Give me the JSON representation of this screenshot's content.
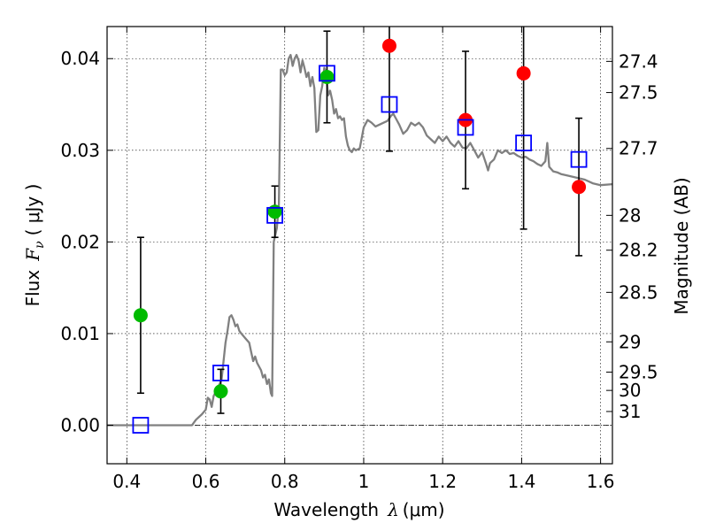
{
  "chart_data": {
    "type": "scatter",
    "xlabel": "Wavelength",
    "xlabel_symbol": "λ",
    "xlabel_unit": "(μm)",
    "ylabel": "Flux",
    "ylabel_symbol": "F",
    "ylabel_sub": "ν",
    "ylabel_unit": "( μJy )",
    "y2label": "Magnitude (AB)",
    "xlim": [
      0.35,
      1.63
    ],
    "ylim": [
      -0.0042,
      0.0435
    ],
    "grid": true,
    "x_ticks": [
      {
        "value": 0.4,
        "label": "0.4"
      },
      {
        "value": 0.6,
        "label": "0.6"
      },
      {
        "value": 0.8,
        "label": "0.8"
      },
      {
        "value": 1.0,
        "label": "1"
      },
      {
        "value": 1.2,
        "label": "1.2"
      },
      {
        "value": 1.4,
        "label": "1.4"
      },
      {
        "value": 1.6,
        "label": "1.6"
      }
    ],
    "y_ticks": [
      {
        "value": 0.0,
        "label": "0.00"
      },
      {
        "value": 0.01,
        "label": "0.01"
      },
      {
        "value": 0.02,
        "label": "0.02"
      },
      {
        "value": 0.03,
        "label": "0.03"
      },
      {
        "value": 0.04,
        "label": "0.04"
      }
    ],
    "y2_ticks": [
      {
        "label": "27.4",
        "flux": 0.0397
      },
      {
        "label": "27.5",
        "flux": 0.0363
      },
      {
        "label": "27.7",
        "flux": 0.0302
      },
      {
        "label": "28",
        "flux": 0.0229
      },
      {
        "label": "28.2",
        "flux": 0.0191
      },
      {
        "label": "28.5",
        "flux": 0.0145
      },
      {
        "label": "29",
        "flux": 0.0091
      },
      {
        "label": "29.5",
        "flux": 0.0058
      },
      {
        "label": "30",
        "flux": 0.0038
      },
      {
        "label": "31",
        "flux": 0.0015
      }
    ],
    "colors": {
      "model": "#808080",
      "green": "#00bb00",
      "red": "#ff0000",
      "square": "#0000ff",
      "errorbar": "#000000",
      "zero_line": "#000000"
    },
    "series": [
      {
        "marker": "circle",
        "color_key": "green",
        "points": [
          {
            "x": 0.435,
            "y": 0.012,
            "err": 0.0085
          },
          {
            "x": 0.638,
            "y": 0.0037,
            "err": 0.0024
          },
          {
            "x": 0.775,
            "y": 0.0233,
            "err": 0.0028
          },
          {
            "x": 0.907,
            "y": 0.038,
            "err": 0.005
          }
        ]
      },
      {
        "marker": "circle",
        "color_key": "red",
        "points": [
          {
            "x": 1.065,
            "y": 0.0414,
            "err": 0.0115
          },
          {
            "x": 1.258,
            "y": 0.0333,
            "err": 0.0075
          },
          {
            "x": 1.405,
            "y": 0.0384,
            "err": 0.017
          },
          {
            "x": 1.545,
            "y": 0.026,
            "err": 0.0075
          }
        ]
      },
      {
        "marker": "square",
        "color_key": "square",
        "points": [
          {
            "x": 0.435,
            "y": 0.0
          },
          {
            "x": 0.638,
            "y": 0.0057
          },
          {
            "x": 0.775,
            "y": 0.0229
          },
          {
            "x": 0.907,
            "y": 0.0384
          },
          {
            "x": 1.065,
            "y": 0.035
          },
          {
            "x": 1.258,
            "y": 0.0325
          },
          {
            "x": 1.405,
            "y": 0.0308
          },
          {
            "x": 1.545,
            "y": 0.029
          }
        ]
      }
    ],
    "model_curve": [
      [
        0.35,
        0.0
      ],
      [
        0.565,
        0.0
      ],
      [
        0.575,
        0.0006
      ],
      [
        0.59,
        0.0012
      ],
      [
        0.6,
        0.0017
      ],
      [
        0.605,
        0.003
      ],
      [
        0.61,
        0.0028
      ],
      [
        0.615,
        0.002
      ],
      [
        0.62,
        0.0032
      ],
      [
        0.63,
        0.004
      ],
      [
        0.64,
        0.005
      ],
      [
        0.645,
        0.007
      ],
      [
        0.65,
        0.009
      ],
      [
        0.655,
        0.0103
      ],
      [
        0.66,
        0.0118
      ],
      [
        0.665,
        0.012
      ],
      [
        0.67,
        0.0115
      ],
      [
        0.675,
        0.0108
      ],
      [
        0.68,
        0.011
      ],
      [
        0.685,
        0.0103
      ],
      [
        0.69,
        0.01
      ],
      [
        0.7,
        0.0095
      ],
      [
        0.71,
        0.009
      ],
      [
        0.715,
        0.008
      ],
      [
        0.72,
        0.007
      ],
      [
        0.725,
        0.0075
      ],
      [
        0.73,
        0.0068
      ],
      [
        0.74,
        0.006
      ],
      [
        0.745,
        0.0052
      ],
      [
        0.75,
        0.0055
      ],
      [
        0.755,
        0.0045
      ],
      [
        0.76,
        0.005
      ],
      [
        0.765,
        0.0035
      ],
      [
        0.768,
        0.0032
      ],
      [
        0.772,
        0.02
      ],
      [
        0.78,
        0.0215
      ],
      [
        0.785,
        0.024
      ],
      [
        0.79,
        0.0388
      ],
      [
        0.795,
        0.0388
      ],
      [
        0.8,
        0.0382
      ],
      [
        0.805,
        0.0385
      ],
      [
        0.81,
        0.04
      ],
      [
        0.815,
        0.0404
      ],
      [
        0.82,
        0.0392
      ],
      [
        0.825,
        0.04
      ],
      [
        0.83,
        0.0404
      ],
      [
        0.835,
        0.0398
      ],
      [
        0.84,
        0.0385
      ],
      [
        0.845,
        0.0398
      ],
      [
        0.85,
        0.039
      ],
      [
        0.855,
        0.038
      ],
      [
        0.86,
        0.0385
      ],
      [
        0.865,
        0.037
      ],
      [
        0.87,
        0.038
      ],
      [
        0.875,
        0.0368
      ],
      [
        0.88,
        0.032
      ],
      [
        0.885,
        0.0322
      ],
      [
        0.89,
        0.036
      ],
      [
        0.895,
        0.037
      ],
      [
        0.9,
        0.039
      ],
      [
        0.905,
        0.0385
      ],
      [
        0.91,
        0.036
      ],
      [
        0.915,
        0.0365
      ],
      [
        0.92,
        0.0355
      ],
      [
        0.925,
        0.034
      ],
      [
        0.93,
        0.0345
      ],
      [
        0.935,
        0.0335
      ],
      [
        0.94,
        0.0337
      ],
      [
        0.945,
        0.0333
      ],
      [
        0.95,
        0.0335
      ],
      [
        0.955,
        0.0315
      ],
      [
        0.96,
        0.0305
      ],
      [
        0.965,
        0.03
      ],
      [
        0.97,
        0.0298
      ],
      [
        0.975,
        0.0302
      ],
      [
        0.98,
        0.03
      ],
      [
        0.99,
        0.0302
      ],
      [
        1.0,
        0.0325
      ],
      [
        1.01,
        0.0333
      ],
      [
        1.02,
        0.033
      ],
      [
        1.03,
        0.0326
      ],
      [
        1.04,
        0.0328
      ],
      [
        1.05,
        0.033
      ],
      [
        1.06,
        0.0332
      ],
      [
        1.07,
        0.0338
      ],
      [
        1.075,
        0.034
      ],
      [
        1.08,
        0.0336
      ],
      [
        1.09,
        0.0328
      ],
      [
        1.1,
        0.0318
      ],
      [
        1.11,
        0.0322
      ],
      [
        1.12,
        0.033
      ],
      [
        1.13,
        0.0327
      ],
      [
        1.14,
        0.033
      ],
      [
        1.15,
        0.0325
      ],
      [
        1.16,
        0.0316
      ],
      [
        1.17,
        0.0312
      ],
      [
        1.18,
        0.0308
      ],
      [
        1.19,
        0.0315
      ],
      [
        1.2,
        0.031
      ],
      [
        1.21,
        0.0315
      ],
      [
        1.22,
        0.0308
      ],
      [
        1.23,
        0.0304
      ],
      [
        1.24,
        0.031
      ],
      [
        1.25,
        0.0303
      ],
      [
        1.26,
        0.0302
      ],
      [
        1.27,
        0.0308
      ],
      [
        1.28,
        0.03
      ],
      [
        1.29,
        0.0292
      ],
      [
        1.3,
        0.0298
      ],
      [
        1.31,
        0.0285
      ],
      [
        1.315,
        0.0278
      ],
      [
        1.32,
        0.0286
      ],
      [
        1.33,
        0.029
      ],
      [
        1.34,
        0.03
      ],
      [
        1.35,
        0.0297
      ],
      [
        1.36,
        0.03
      ],
      [
        1.37,
        0.0296
      ],
      [
        1.38,
        0.0297
      ],
      [
        1.39,
        0.0294
      ],
      [
        1.4,
        0.0292
      ],
      [
        1.41,
        0.0293
      ],
      [
        1.42,
        0.029
      ],
      [
        1.43,
        0.0288
      ],
      [
        1.44,
        0.0285
      ],
      [
        1.45,
        0.0283
      ],
      [
        1.46,
        0.0288
      ],
      [
        1.465,
        0.0308
      ],
      [
        1.47,
        0.0282
      ],
      [
        1.48,
        0.0277
      ],
      [
        1.49,
        0.0276
      ],
      [
        1.5,
        0.0274
      ],
      [
        1.52,
        0.0272
      ],
      [
        1.54,
        0.027
      ],
      [
        1.56,
        0.0268
      ],
      [
        1.58,
        0.0264
      ],
      [
        1.6,
        0.0262
      ],
      [
        1.63,
        0.0263
      ]
    ]
  }
}
